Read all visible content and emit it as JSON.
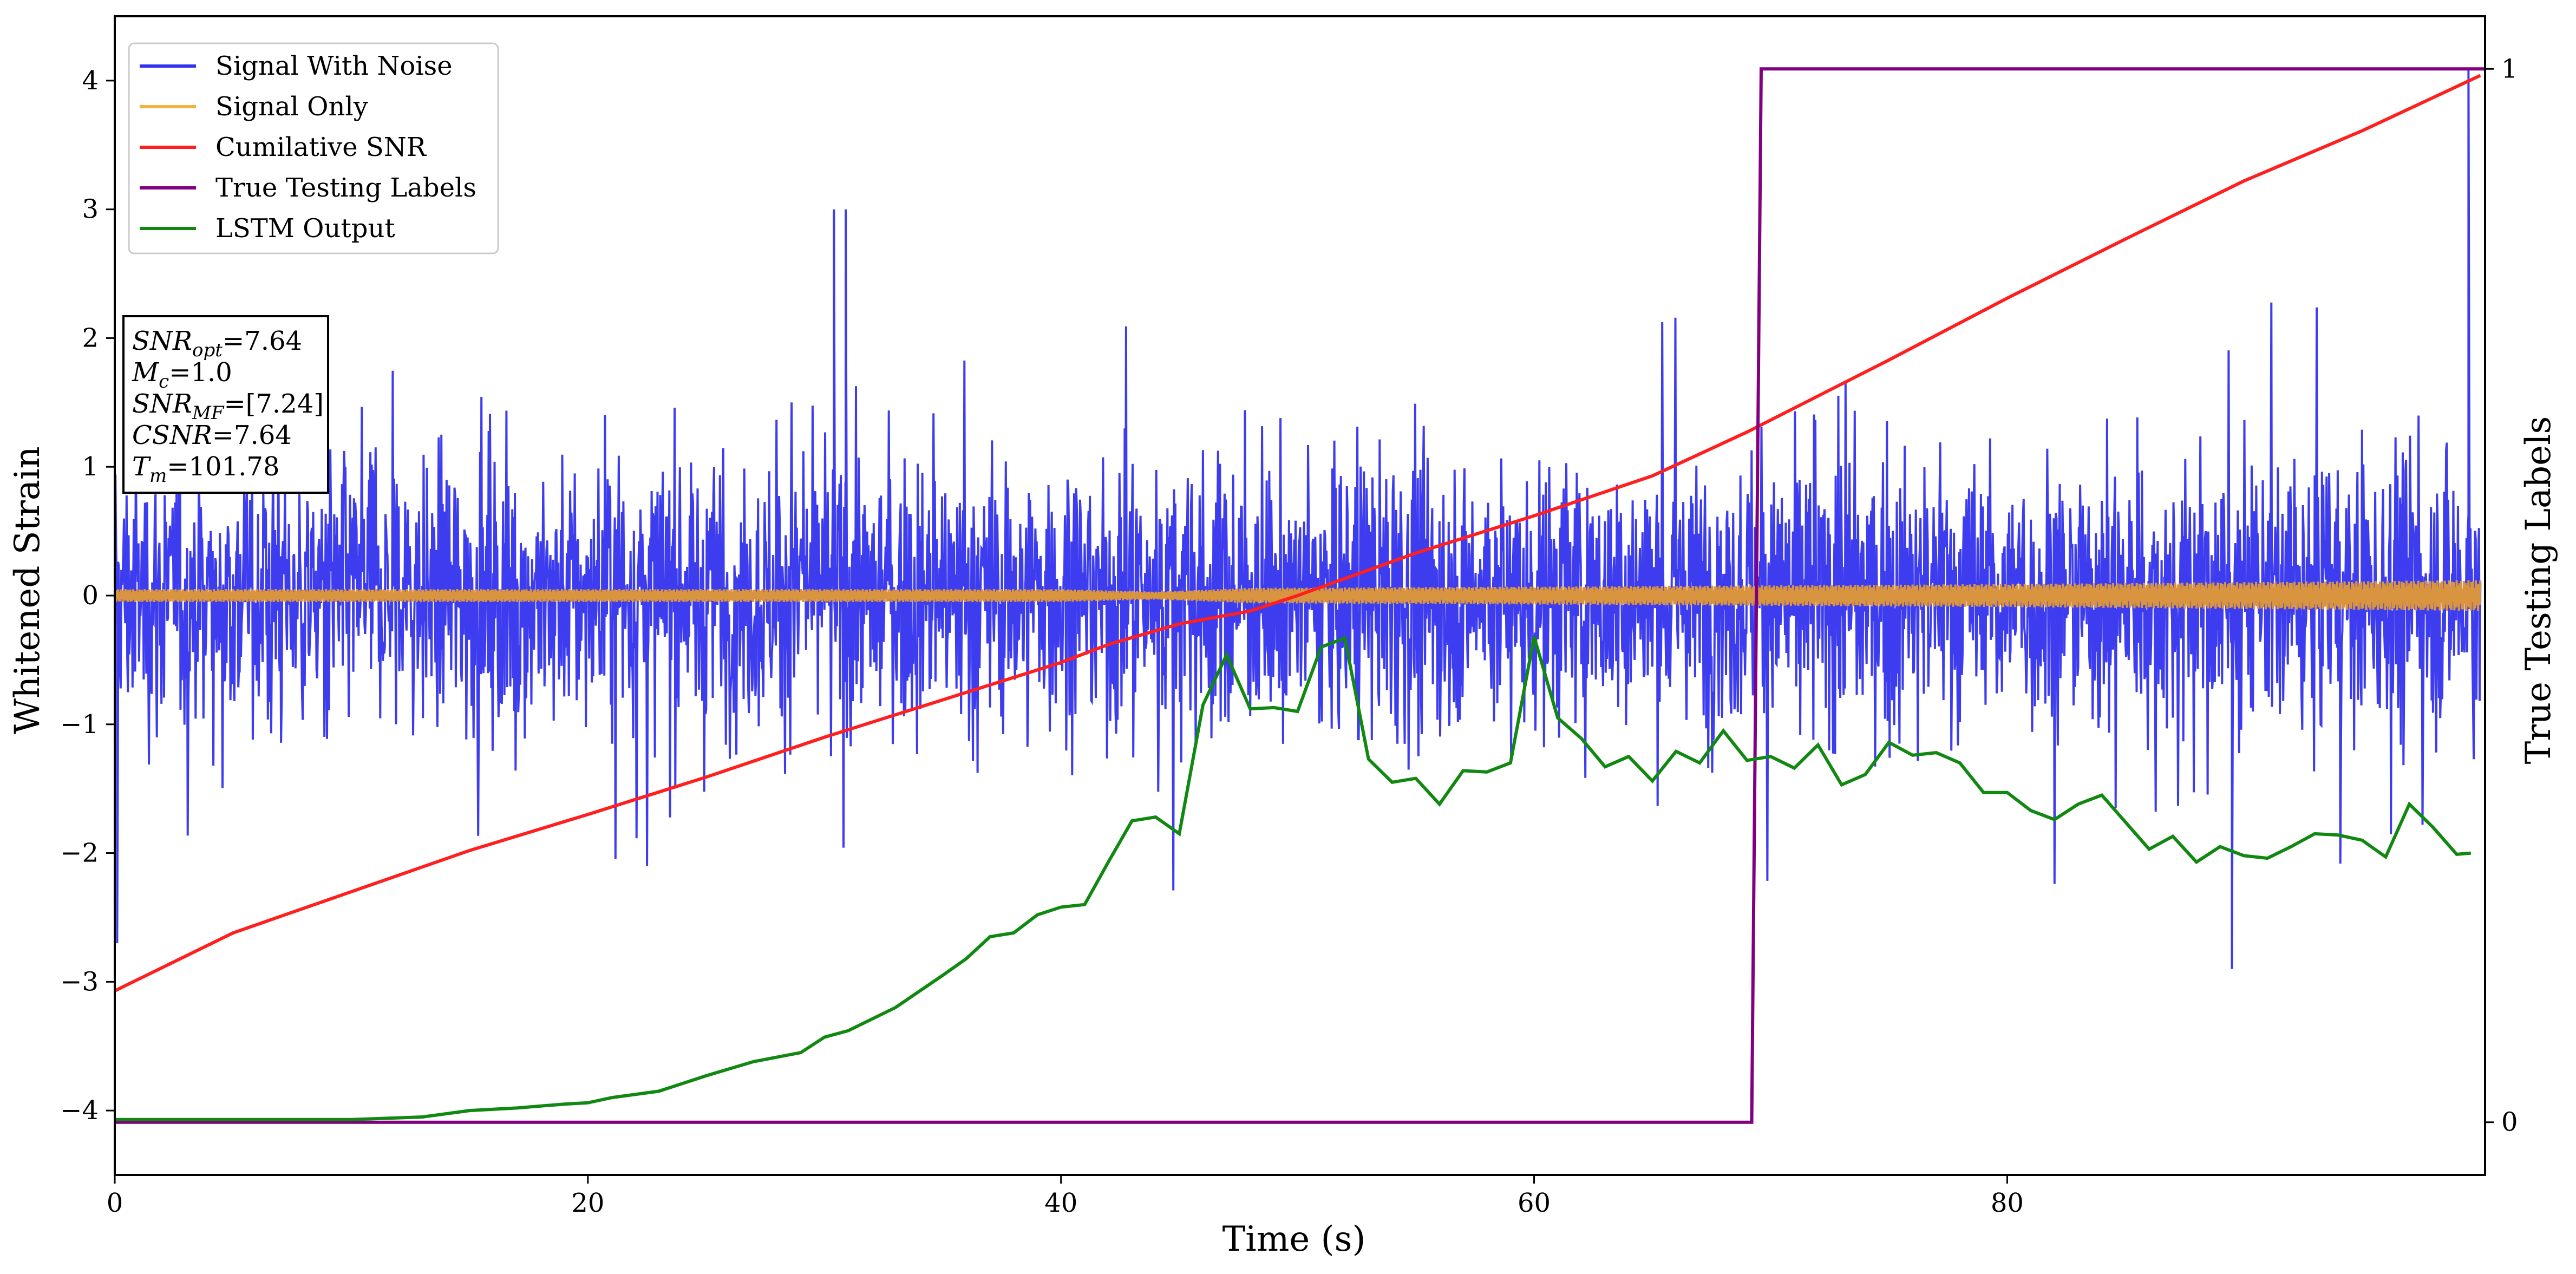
{
  "chart_data": {
    "type": "line",
    "title": "",
    "xlabel": "Time (s)",
    "ylabel": "Whitened Strain",
    "y2label": "True Testing Labels",
    "xlim": [
      0,
      100.2
    ],
    "ylim": [
      -4.5,
      4.5
    ],
    "y2lim": [
      -0.05,
      1.05
    ],
    "x_ticks": [
      0,
      20,
      40,
      60,
      80
    ],
    "x_tick_labels": [
      "0",
      "20",
      "40",
      "60",
      "80"
    ],
    "y_ticks": [
      -4,
      -3,
      -2,
      -1,
      0,
      1,
      2,
      3,
      4
    ],
    "y_tick_labels": [
      "−4",
      "−3",
      "−2",
      "−1",
      "0",
      "1",
      "2",
      "3",
      "4"
    ],
    "y2_ticks": [
      0,
      1
    ],
    "y2_tick_labels": [
      "0",
      "1"
    ],
    "grid": false,
    "legend_position": "upper-left",
    "legend": [
      {
        "label": "Signal With Noise",
        "color": "#3333ee"
      },
      {
        "label": "Signal Only",
        "color": "#f5b041"
      },
      {
        "label": "Cumilative SNR",
        "color": "#ff1f1f"
      },
      {
        "label": "True Testing Labels",
        "color": "#800080"
      },
      {
        "label": "LSTM Output",
        "color": "#118811"
      }
    ],
    "info_box": [
      {
        "main": "SNR",
        "sub": "opt",
        "rest": "=7.64"
      },
      {
        "main": "M",
        "sub": "c",
        "rest": "=1.0"
      },
      {
        "main": "SNR",
        "sub": "MF",
        "rest": "=[7.24]"
      },
      {
        "main": "CSNR",
        "sub": "",
        "rest": "=7.64"
      },
      {
        "main": "T",
        "sub": "m",
        "rest": "=101.78"
      }
    ],
    "series": [
      {
        "name": "Signal With Noise",
        "color": "#3333ee",
        "description": "dense noisy whitened strain trace",
        "upper_envelope": {
          "x": [
            0,
            5,
            10,
            15,
            20,
            25,
            30,
            35,
            40,
            45,
            50,
            55,
            60,
            65,
            70,
            75,
            80,
            85,
            90,
            95,
            100
          ],
          "y": [
            1.9,
            2.1,
            2.3,
            2.2,
            2.0,
            2.2,
            3.0,
            2.3,
            2.2,
            2.1,
            2.3,
            2.2,
            2.4,
            2.1,
            2.4,
            2.3,
            2.2,
            2.1,
            2.3,
            2.2,
            4.1
          ]
        },
        "lower_envelope": {
          "x": [
            0,
            5,
            10,
            15,
            20,
            25,
            30,
            35,
            40,
            45,
            50,
            55,
            60,
            65,
            70,
            75,
            80,
            85,
            90,
            95,
            100
          ],
          "y": [
            -2.7,
            -2.1,
            -2.3,
            -2.4,
            -2.0,
            -2.2,
            -2.7,
            -2.4,
            -2.1,
            -2.3,
            -2.2,
            -2.7,
            -2.5,
            -2.2,
            -2.5,
            -2.7,
            -2.3,
            -2.4,
            -2.9,
            -2.3,
            -2.0
          ]
        }
      },
      {
        "name": "Signal Only",
        "color": "#d99440",
        "description": "oscillating band around zero",
        "amplitude": {
          "x": [
            0,
            40,
            44,
            48,
            60,
            80,
            100
          ],
          "y": [
            0.05,
            0.05,
            0.03,
            0.06,
            0.07,
            0.09,
            0.12
          ]
        }
      },
      {
        "name": "Cumilative SNR",
        "color": "#ff1f1f",
        "x": [
          0,
          5,
          10,
          15,
          20,
          25,
          30,
          35,
          40,
          42,
          45,
          48,
          50,
          55,
          60,
          65,
          69,
          75,
          80,
          85,
          90,
          95,
          100
        ],
        "y": [
          -3.07,
          -2.62,
          -2.3,
          -1.98,
          -1.7,
          -1.41,
          -1.1,
          -0.81,
          -0.52,
          -0.38,
          -0.22,
          -0.12,
          0.0,
          0.33,
          0.62,
          0.93,
          1.27,
          1.83,
          2.31,
          2.77,
          3.22,
          3.61,
          4.04
        ]
      },
      {
        "name": "True Testing Labels",
        "axis": "y2",
        "color": "#800080",
        "x": [
          0,
          69.2,
          69.6,
          100.2
        ],
        "y": [
          0,
          0,
          1,
          1
        ]
      },
      {
        "name": "LSTM Output",
        "color": "#118811",
        "x": [
          0,
          10,
          13,
          15,
          17,
          19,
          20,
          21,
          23,
          25,
          27,
          29,
          30,
          31,
          33,
          35,
          36,
          37,
          38,
          39,
          40,
          41,
          42,
          43,
          44,
          45,
          46,
          47,
          48,
          49,
          50,
          51,
          52,
          53,
          54,
          55,
          56,
          57,
          58,
          59,
          60,
          61,
          62,
          63,
          64,
          65,
          66,
          67,
          68,
          69,
          70,
          71,
          72,
          73,
          74,
          75,
          76,
          77,
          78,
          79,
          80,
          81,
          82,
          83,
          84,
          85,
          86,
          87,
          88,
          89,
          90,
          91,
          92,
          93,
          94,
          95,
          96,
          97,
          98,
          99,
          99.6
        ],
        "y": [
          -4.07,
          -4.07,
          -4.05,
          -4.0,
          -3.98,
          -3.95,
          -3.94,
          -3.9,
          -3.85,
          -3.73,
          -3.62,
          -3.55,
          -3.43,
          -3.38,
          -3.2,
          -2.95,
          -2.82,
          -2.65,
          -2.62,
          -2.48,
          -2.42,
          -2.4,
          -2.07,
          -1.75,
          -1.72,
          -1.85,
          -0.85,
          -0.46,
          -0.88,
          -0.87,
          -0.9,
          -0.4,
          -0.33,
          -1.27,
          -1.45,
          -1.42,
          -1.62,
          -1.36,
          -1.37,
          -1.3,
          -0.32,
          -0.95,
          -1.11,
          -1.33,
          -1.25,
          -1.44,
          -1.21,
          -1.3,
          -1.05,
          -1.28,
          -1.25,
          -1.34,
          -1.16,
          -1.47,
          -1.39,
          -1.14,
          -1.24,
          -1.22,
          -1.3,
          -1.53,
          -1.53,
          -1.67,
          -1.74,
          -1.62,
          -1.55,
          -1.76,
          -1.97,
          -1.87,
          -2.07,
          -1.95,
          -2.02,
          -2.04,
          -1.95,
          -1.85,
          -1.86,
          -1.9,
          -2.03,
          -1.62,
          -1.8,
          -2.01,
          -2.0
        ]
      }
    ]
  }
}
